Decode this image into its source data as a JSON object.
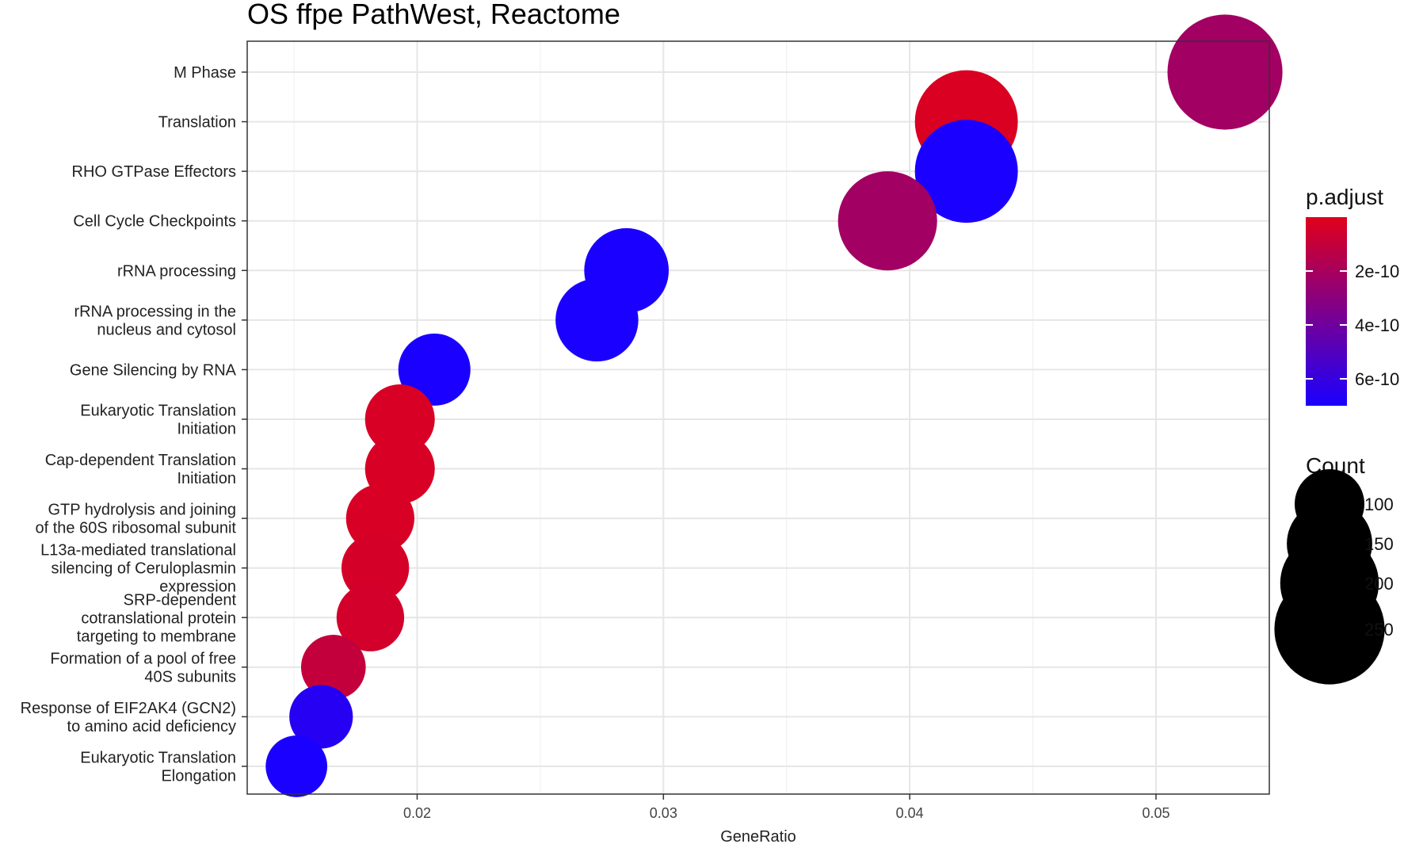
{
  "chart_data": {
    "type": "scatter",
    "title": "OS ffpe PathWest, Reactome",
    "xlabel": "GeneRatio",
    "ylabel": "",
    "xlim": [
      0.0131,
      0.0546
    ],
    "xticks": [
      0.02,
      0.03,
      0.04,
      0.05
    ],
    "xtick_labels": [
      "0.02",
      "0.03",
      "0.04",
      "0.05"
    ],
    "grid": true,
    "categories": [
      [
        "M Phase"
      ],
      [
        "Translation"
      ],
      [
        "RHO GTPase Effectors"
      ],
      [
        "Cell Cycle Checkpoints"
      ],
      [
        "rRNA processing"
      ],
      [
        "rRNA processing in the",
        "nucleus and cytosol"
      ],
      [
        "Gene Silencing by RNA"
      ],
      [
        "Eukaryotic Translation",
        "Initiation"
      ],
      [
        "Cap-dependent Translation",
        "Initiation"
      ],
      [
        "GTP hydrolysis and joining",
        "of the 60S ribosomal subunit"
      ],
      [
        "L13a-mediated translational",
        "silencing of Ceruloplasmin",
        "expression"
      ],
      [
        "SRP-dependent",
        "cotranslational protein",
        "targeting to membrane"
      ],
      [
        "Formation of a pool of free",
        "40S subunits"
      ],
      [
        "Response of EIF2AK4 (GCN2)",
        "to amino acid deficiency"
      ],
      [
        "Eukaryotic Translation",
        "Elongation"
      ]
    ],
    "gene_ratio": [
      0.0528,
      0.0423,
      0.0423,
      0.0391,
      0.0285,
      0.0273,
      0.0207,
      0.0193,
      0.0193,
      0.0185,
      0.0183,
      0.0181,
      0.0166,
      0.0161,
      0.0151
    ],
    "count": [
      272,
      218,
      218,
      202,
      147,
      141,
      107,
      100,
      100,
      96,
      94,
      94,
      86,
      83,
      78
    ],
    "p_adjust": [
      2.2e-10,
      2e-11,
      7e-10,
      2.2e-10,
      7e-10,
      7e-10,
      7e-10,
      3e-11,
      3e-11,
      3e-11,
      4e-11,
      5e-11,
      1e-10,
      6.6e-10,
      7e-10
    ],
    "color_legend": {
      "title": "p.adjust",
      "ticks": [
        2e-10,
        4e-10,
        6e-10
      ],
      "tick_labels": [
        "2e-10",
        "4e-10",
        "6e-10"
      ],
      "range": [
        0.0,
        7e-10
      ],
      "low_color": "#E0001B",
      "high_color": "#1A00FF"
    },
    "size_legend": {
      "title": "Count",
      "values": [
        100,
        150,
        200,
        250
      ],
      "labels": [
        "100",
        "150",
        "200",
        "250"
      ]
    },
    "legend_position": "right"
  }
}
